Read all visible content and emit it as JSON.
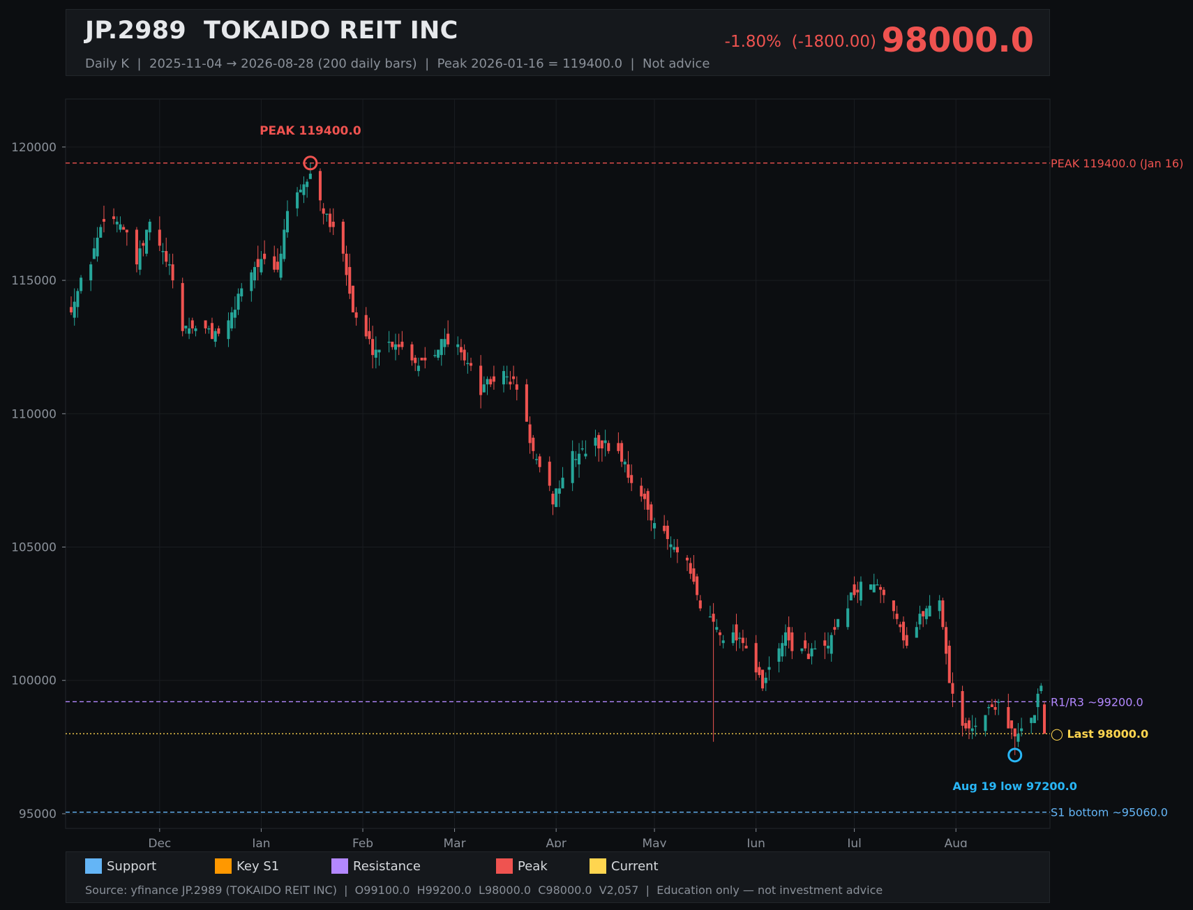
{
  "header": {
    "title": "JP.2989  TOKAIDO REIT INC",
    "subtitle": "Daily K  |  2025-11-04 → 2026-08-28 (200 daily bars)  |  Peak 2026-01-16 = 119400.0  |  Not advice",
    "change": "-1.80%  (-1800.00)",
    "price": "98000.0"
  },
  "colors": {
    "up": "#26a69a",
    "down": "#ef5350",
    "peak": "#ef5350",
    "resistance": "#b388ff",
    "current": "#ffd54f",
    "support": "#64b5f6",
    "low_marker": "#29b6f6",
    "grid": "#1a1d21",
    "tick": "#8a9099"
  },
  "chart_data": {
    "type": "candlestick",
    "x_start": "2025-11-04",
    "x_end": "2026-08-28",
    "bars": 200,
    "ylim": [
      94450,
      121800
    ],
    "yticks": [
      95000,
      100000,
      105000,
      110000,
      115000,
      120000
    ],
    "month_ticks": [
      {
        "label": "Dec",
        "date": "2025-12-01"
      },
      {
        "label": "Jan",
        "date": "2026-01-01"
      },
      {
        "label": "Feb",
        "date": "2026-02-01"
      },
      {
        "label": "Mar",
        "date": "2026-03-01"
      },
      {
        "label": "Apr",
        "date": "2026-04-01"
      },
      {
        "label": "May",
        "date": "2026-05-01"
      },
      {
        "label": "Jun",
        "date": "2026-06-01"
      },
      {
        "label": "Jul",
        "date": "2026-07-01"
      },
      {
        "label": "Aug",
        "date": "2026-08-01"
      }
    ],
    "anchors": [
      {
        "date": "2025-11-04",
        "close": 114000
      },
      {
        "date": "2025-11-10",
        "close": 115800
      },
      {
        "date": "2025-11-14",
        "close": 117400
      },
      {
        "date": "2025-11-19",
        "close": 117200
      },
      {
        "date": "2025-11-24",
        "close": 115600
      },
      {
        "date": "2025-11-28",
        "close": 117100
      },
      {
        "date": "2025-12-04",
        "close": 115400
      },
      {
        "date": "2025-12-08",
        "close": 113200
      },
      {
        "date": "2025-12-12",
        "close": 113300
      },
      {
        "date": "2025-12-17",
        "close": 113000
      },
      {
        "date": "2025-12-22",
        "close": 113300
      },
      {
        "date": "2025-12-26",
        "close": 114800
      },
      {
        "date": "2025-12-31",
        "close": 115700
      },
      {
        "date": "2026-01-06",
        "close": 115300
      },
      {
        "date": "2026-01-09",
        "close": 117700
      },
      {
        "date": "2026-01-13",
        "close": 118200
      },
      {
        "date": "2026-01-16",
        "close": 119000
      },
      {
        "date": "2026-01-21",
        "close": 117300
      },
      {
        "date": "2026-01-26",
        "close": 116200
      },
      {
        "date": "2026-01-29",
        "close": 113800
      },
      {
        "date": "2026-02-04",
        "close": 112400
      },
      {
        "date": "2026-02-11",
        "close": 112700
      },
      {
        "date": "2026-02-18",
        "close": 111900
      },
      {
        "date": "2026-02-25",
        "close": 112700
      },
      {
        "date": "2026-03-03",
        "close": 112400
      },
      {
        "date": "2026-03-09",
        "close": 110900
      },
      {
        "date": "2026-03-16",
        "close": 111500
      },
      {
        "date": "2026-03-20",
        "close": 111000
      },
      {
        "date": "2026-03-26",
        "close": 108100
      },
      {
        "date": "2026-03-31",
        "close": 106800
      },
      {
        "date": "2026-04-06",
        "close": 108400
      },
      {
        "date": "2026-04-13",
        "close": 108900
      },
      {
        "date": "2026-04-20",
        "close": 108600
      },
      {
        "date": "2026-04-27",
        "close": 106800
      },
      {
        "date": "2026-05-04",
        "close": 105400
      },
      {
        "date": "2026-05-11",
        "close": 104300
      },
      {
        "date": "2026-05-15",
        "close": 102800
      },
      {
        "date": "2026-05-22",
        "close": 101700
      },
      {
        "date": "2026-05-28",
        "close": 101600
      },
      {
        "date": "2026-06-03",
        "close": 99700
      },
      {
        "date": "2026-06-09",
        "close": 101600
      },
      {
        "date": "2026-06-16",
        "close": 101000
      },
      {
        "date": "2026-06-23",
        "close": 101200
      },
      {
        "date": "2026-06-30",
        "close": 103200
      },
      {
        "date": "2026-07-06",
        "close": 103700
      },
      {
        "date": "2026-07-13",
        "close": 102800
      },
      {
        "date": "2026-07-17",
        "close": 101300
      },
      {
        "date": "2026-07-22",
        "close": 102600
      },
      {
        "date": "2026-07-27",
        "close": 103100
      },
      {
        "date": "2026-07-30",
        "close": 100000
      },
      {
        "date": "2026-08-04",
        "close": 98000
      },
      {
        "date": "2026-08-10",
        "close": 98800
      },
      {
        "date": "2026-08-14",
        "close": 99200
      },
      {
        "date": "2026-08-19",
        "close": 97800
      },
      {
        "date": "2026-08-24",
        "close": 98500
      },
      {
        "date": "2026-08-27",
        "close": 99800
      },
      {
        "date": "2026-08-28",
        "close": 98000
      }
    ],
    "hlines": [
      {
        "value": 119400,
        "label": "PEAK 119400.0 (Jan 16)",
        "color": "#ef5350",
        "style": "dashed"
      },
      {
        "value": 99200,
        "label": "R1/R3 ~99200.0",
        "color": "#b388ff",
        "style": "dashed"
      },
      {
        "value": 98000,
        "label": "◯ Last 98000.0",
        "color": "#ffd54f",
        "style": "dotted"
      },
      {
        "value": 95060,
        "label": "S1 bottom ~95060.0",
        "color": "#64b5f6",
        "style": "dashed"
      }
    ],
    "annotations": [
      {
        "date": "2026-01-16",
        "value": 119400,
        "text": "PEAK 119400.0",
        "color": "#ef5350"
      },
      {
        "date": "2026-08-19",
        "value": 97200,
        "text": "Aug 19 low 97200.0",
        "color": "#29b6f6"
      }
    ]
  },
  "legend": {
    "items": [
      {
        "label": "Support",
        "color": "#64b5f6"
      },
      {
        "label": "Key S1",
        "color": "#ff9800"
      },
      {
        "label": "Resistance",
        "color": "#b388ff"
      },
      {
        "label": "Peak",
        "color": "#ef5350"
      },
      {
        "label": "Current",
        "color": "#ffd54f"
      }
    ],
    "source": "Source: yfinance JP.2989 (TOKAIDO REIT INC)  |  O99100.0  H99200.0  L98000.0  C98000.0  V2,057  |  Education only — not investment advice"
  }
}
